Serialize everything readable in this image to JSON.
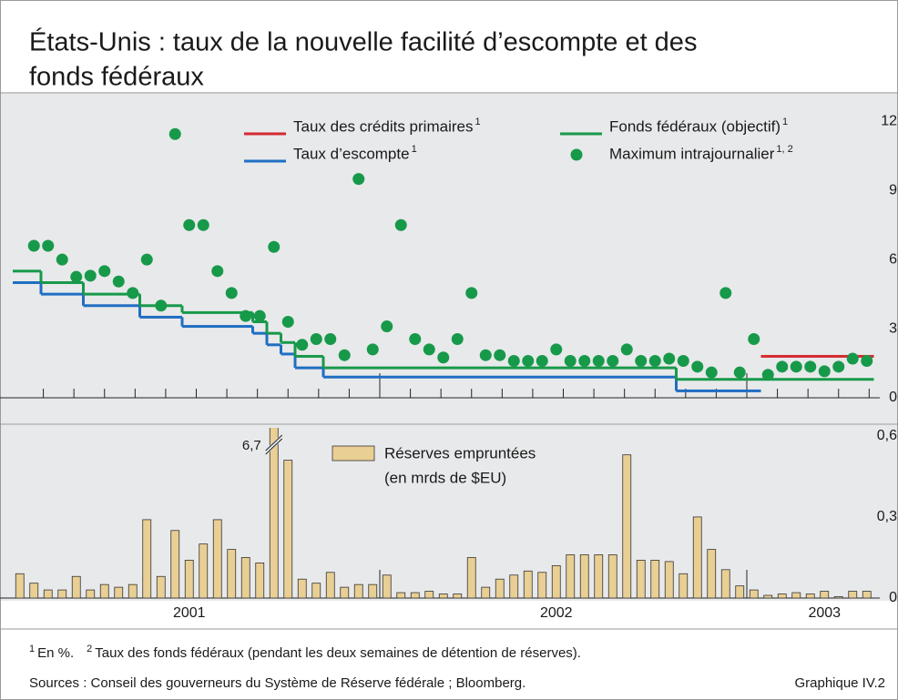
{
  "title_lines": [
    "États-Unis : taux de la nouvelle facilité d’escompte et des",
    "fonds fédéraux"
  ],
  "chart_data": [
    {
      "type": "line",
      "ylim": [
        0,
        13.2
      ],
      "yticks": [
        0,
        3,
        6,
        9,
        12
      ],
      "grid": false,
      "series": [
        {
          "name": "Taux des crédits primaires",
          "footnote": "1",
          "color": "#d42a2f",
          "kind": "step",
          "values": [
            null,
            null,
            null,
            null,
            null,
            null,
            null,
            null,
            null,
            null,
            null,
            null,
            null,
            null,
            null,
            null,
            null,
            null,
            null,
            null,
            null,
            null,
            null,
            null,
            null,
            null,
            null,
            null,
            null,
            null,
            null,
            null,
            null,
            null,
            null,
            null,
            null,
            null,
            null,
            null,
            null,
            null,
            null,
            null,
            null,
            null,
            null,
            null,
            null,
            null,
            null,
            null,
            null,
            1.8,
            1.8,
            1.8,
            1.8,
            1.8,
            1.8,
            1.8,
            1.8
          ]
        },
        {
          "name": "Taux d’escompte",
          "footnote": "1",
          "color": "#1f6ec2",
          "kind": "step",
          "values": [
            5.0,
            5.0,
            4.5,
            4.5,
            4.5,
            4.0,
            4.0,
            4.0,
            4.0,
            3.5,
            3.5,
            3.5,
            3.1,
            3.1,
            3.1,
            3.1,
            3.1,
            2.8,
            2.3,
            1.9,
            1.3,
            1.3,
            0.9,
            0.9,
            0.9,
            0.9,
            0.9,
            0.9,
            0.9,
            0.9,
            0.9,
            0.9,
            0.9,
            0.9,
            0.9,
            0.9,
            0.9,
            0.9,
            0.9,
            0.9,
            0.9,
            0.9,
            0.9,
            0.9,
            0.9,
            0.9,
            0.9,
            0.3,
            0.3,
            0.3,
            0.3,
            0.3,
            0.3,
            null,
            null,
            null,
            null,
            null,
            null,
            null,
            null
          ]
        },
        {
          "name": "Fonds fédéraux (objectif)",
          "footnote": "1",
          "color": "#17994a",
          "kind": "step",
          "values": [
            5.5,
            5.5,
            5.0,
            5.0,
            5.0,
            4.5,
            4.5,
            4.5,
            4.5,
            4.0,
            4.0,
            4.0,
            3.7,
            3.7,
            3.7,
            3.7,
            3.7,
            3.3,
            2.8,
            2.4,
            1.8,
            1.8,
            1.3,
            1.3,
            1.3,
            1.3,
            1.3,
            1.3,
            1.3,
            1.3,
            1.3,
            1.3,
            1.3,
            1.3,
            1.3,
            1.3,
            1.3,
            1.3,
            1.3,
            1.3,
            1.3,
            1.3,
            1.3,
            1.3,
            1.3,
            1.3,
            1.3,
            0.8,
            0.8,
            0.8,
            0.8,
            0.8,
            0.8,
            0.8,
            0.8,
            0.8,
            0.8,
            0.8,
            0.8,
            0.8,
            0.8
          ]
        },
        {
          "name": "Maximum intrajournalier",
          "footnote": "1, 2",
          "color": "#17994a",
          "kind": "marker",
          "values": [
            null,
            6.6,
            6.6,
            6.0,
            5.25,
            5.3,
            5.5,
            5.05,
            4.55,
            6.0,
            4.0,
            11.45,
            7.5,
            7.5,
            5.5,
            4.55,
            3.55,
            3.55,
            6.55,
            3.3,
            2.3,
            2.55,
            2.55,
            1.85,
            9.5,
            2.1,
            3.1,
            7.5,
            2.55,
            2.1,
            1.75,
            2.55,
            4.55,
            1.85,
            1.85,
            1.6,
            1.6,
            1.6,
            2.1,
            1.6,
            1.6,
            1.6,
            1.6,
            2.1,
            1.6,
            1.6,
            1.7,
            1.6,
            1.35,
            1.1,
            4.55,
            1.1,
            2.55,
            1.0,
            1.35,
            1.35,
            1.35,
            1.15,
            1.35,
            1.7,
            1.6
          ]
        }
      ]
    },
    {
      "type": "bar",
      "categories": [
        null,
        null,
        null,
        null,
        null,
        null,
        null,
        null,
        null,
        null,
        null,
        null,
        "2001",
        null,
        null,
        null,
        null,
        null,
        null,
        null,
        null,
        null,
        null,
        null,
        null,
        null,
        null,
        null,
        null,
        null,
        null,
        null,
        null,
        null,
        null,
        null,
        null,
        null,
        "2002",
        null,
        null,
        null,
        null,
        null,
        null,
        null,
        null,
        null,
        null,
        null,
        null,
        null,
        null,
        null,
        null,
        null,
        null,
        "2003",
        null,
        null,
        null
      ],
      "ylim": [
        0,
        0.64
      ],
      "yticks": [
        0,
        {
          "value": 0.3,
          "label": "0,3"
        },
        {
          "value": 0.6,
          "label": "0,6"
        }
      ],
      "grid": false,
      "series": [
        {
          "name": "Réserves empruntées",
          "unit": "(en mrds de $EU)",
          "color": "#e9cf94",
          "values": [
            0.09,
            0.055,
            0.03,
            0.03,
            0.08,
            0.03,
            0.05,
            0.04,
            0.05,
            0.29,
            0.08,
            0.25,
            0.14,
            0.2,
            0.29,
            0.18,
            0.15,
            0.13,
            6.7,
            0.51,
            0.07,
            0.055,
            0.095,
            0.04,
            0.05,
            0.05,
            0.085,
            0.02,
            0.02,
            0.025,
            0.015,
            0.015,
            0.15,
            0.04,
            0.07,
            0.085,
            0.1,
            0.095,
            0.12,
            0.16,
            0.16,
            0.16,
            0.16,
            0.53,
            0.14,
            0.14,
            0.135,
            0.09,
            0.3,
            0.18,
            0.105,
            0.045,
            0.03,
            0.01,
            0.015,
            0.02,
            0.015,
            0.025,
            0.005,
            0.025,
            0.025
          ],
          "value_labels": [
            null,
            null,
            null,
            null,
            null,
            null,
            null,
            null,
            null,
            null,
            null,
            null,
            null,
            null,
            null,
            null,
            null,
            null,
            "6,7",
            null,
            null,
            null,
            null,
            null,
            null,
            null,
            null,
            null,
            null,
            null,
            null,
            null,
            null,
            null,
            null,
            null,
            null,
            null,
            null,
            null,
            null,
            null,
            null,
            null,
            null,
            null,
            null,
            null,
            null,
            null,
            null,
            null,
            null,
            null,
            null,
            null,
            null,
            null,
            null,
            null,
            null
          ]
        }
      ]
    }
  ],
  "footnotes": [
    {
      "mark": "1",
      "text": "En %."
    },
    {
      "mark": "2",
      "text": "Taux des fonds fédéraux (pendant les deux semaines de détention de réserves)."
    }
  ],
  "sources": "Sources : Conseil des gouverneurs du Système de Réserve fédérale ; Bloomberg.",
  "figure_id": "Graphique IV.2"
}
